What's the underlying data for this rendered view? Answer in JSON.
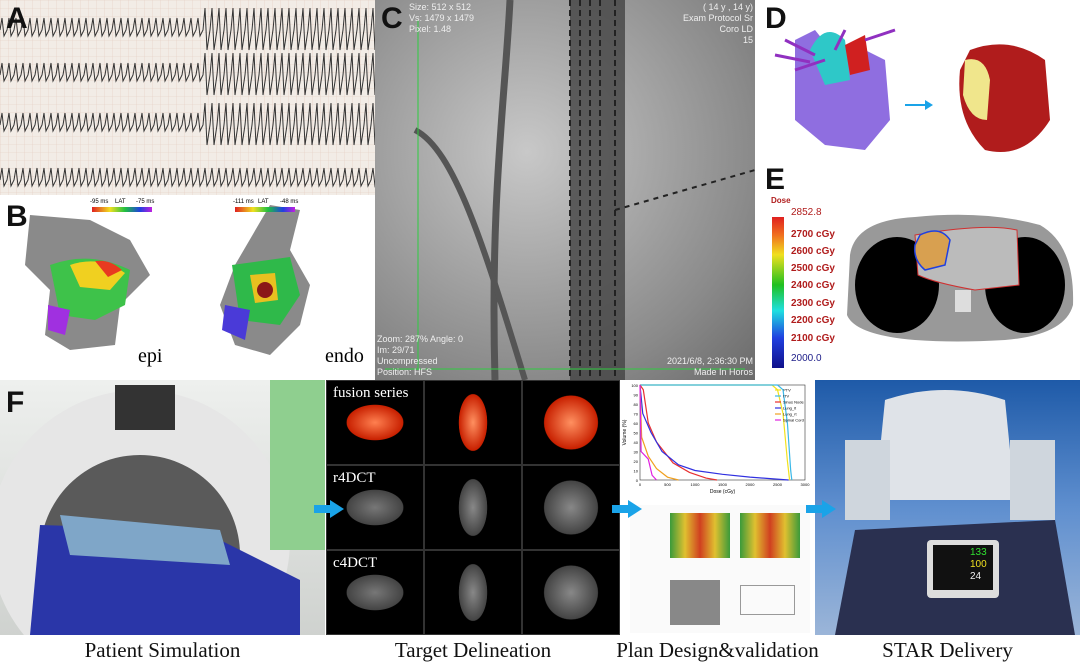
{
  "panels": {
    "A": {
      "label": "A"
    },
    "B": {
      "label": "B",
      "left_map": "epi",
      "right_map": "endo",
      "left_scale": [
        "-95 ms",
        "LAT",
        "-75 ms"
      ],
      "right_scale": [
        "-111 ms",
        "LAT",
        "-48 ms"
      ]
    },
    "C": {
      "label": "C",
      "overlay_top_left": [
        "Size: 512 x 512",
        "Vs: 1479 x 1479",
        "Pixel: 1.48"
      ],
      "overlay_top_right": [
        "( 14 y , 14 y)",
        "Exam Protocol Sr",
        "Coro LD",
        "15"
      ],
      "overlay_bottom_left": [
        "Zoom: 287% Angle: 0",
        "Im: 29/71",
        "Uncompressed",
        "Position: HFS"
      ],
      "overlay_bottom_right": [
        "2021/6/8, 2:36:30 PM",
        "Made In Horos"
      ]
    },
    "D": {
      "label": "D"
    },
    "E": {
      "label": "E",
      "legend_title": "Dose",
      "max": "2852.8",
      "min": "2000.0",
      "ticks": [
        "2700 cGy",
        "2600 cGy",
        "2500 cGy",
        "2400 cGy",
        "2300 cGy",
        "2200 cGy",
        "2100 cGy"
      ]
    },
    "F": {
      "label": "F",
      "ct_rows": [
        "fusion series",
        "r4DCT",
        "c4DCT"
      ]
    }
  },
  "captions": [
    "Patient Simulation",
    "Target Delineation",
    "Plan Design&validation",
    "STAR Delivery"
  ],
  "monitor": {
    "values": [
      "133",
      "100",
      "24"
    ]
  },
  "chart_data": {
    "type": "line",
    "xlabel": "Dose (cGy)",
    "ylabel": "Volume (%)",
    "xlim": [
      0,
      3000
    ],
    "ylim": [
      0,
      100
    ],
    "xticks": [
      "0",
      "500",
      "1000",
      "1500",
      "2000",
      "2500",
      "3000"
    ],
    "yticks": [
      "0",
      "10",
      "20",
      "30",
      "40",
      "50",
      "60",
      "70",
      "80",
      "90",
      "100"
    ],
    "legend": "top-right",
    "series": [
      {
        "name": "PTV",
        "color": "#f2e21c",
        "x": [
          0,
          2400,
          2500,
          2600,
          2680,
          2720
        ],
        "y": [
          100,
          100,
          95,
          70,
          20,
          0
        ]
      },
      {
        "name": "ITV",
        "color": "#3bb8e8",
        "x": [
          0,
          2500,
          2600,
          2680,
          2740,
          2760
        ],
        "y": [
          100,
          100,
          95,
          60,
          10,
          0
        ]
      },
      {
        "name": "Sinus Node",
        "color": "#e83030",
        "x": [
          0,
          60,
          150,
          300,
          600,
          900,
          1200,
          1400
        ],
        "y": [
          100,
          95,
          60,
          40,
          18,
          8,
          2,
          0
        ]
      },
      {
        "name": "Lung_lt",
        "color": "#3030e0",
        "x": [
          0,
          50,
          200,
          400,
          700,
          1000,
          1500,
          2000,
          2700
        ],
        "y": [
          100,
          70,
          50,
          30,
          16,
          10,
          6,
          3,
          0
        ]
      },
      {
        "name": "Lung_rt",
        "color": "#f0a020",
        "x": [
          0,
          30,
          150,
          300,
          500,
          700
        ],
        "y": [
          100,
          45,
          25,
          12,
          3,
          0
        ]
      },
      {
        "name": "Spinal Cord",
        "color": "#e020e0",
        "x": [
          0,
          20,
          150,
          220,
          300
        ],
        "y": [
          100,
          30,
          22,
          5,
          0
        ]
      }
    ]
  }
}
